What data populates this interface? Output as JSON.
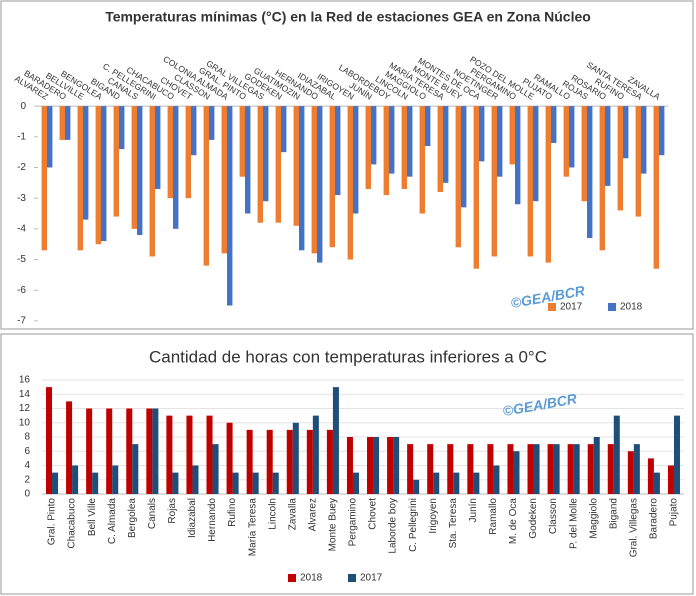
{
  "chart_data": [
    {
      "type": "bar",
      "title": "Temperaturas mínimas (°C) en la Red de estaciones GEA en Zona Núcleo",
      "categories": [
        "ALVAREZ",
        "BARADERO",
        "BELLVILLE",
        "BENGOLEA",
        "BIGAND",
        "CANALS",
        "C. PELLEGRINI",
        "CHACABUCO",
        "CHOVET",
        "CLASSON",
        "COLONIA ALMADA",
        "GRAL. PINTO",
        "GRAL VILLEGAS",
        "GODEKEN",
        "GUATIMOZIN",
        "HERNANDO",
        "IDIAZABAL",
        "IRIGOYEN",
        "JUNÍN",
        "LABORDEBOY",
        "LINCOLN",
        "MAGGIOLO",
        "MARÍA TERESA",
        "MONTE BUEY",
        "MONTES DE OCA",
        "NOETINGER",
        "PERGAMINO",
        "POZO DEL MOLLE",
        "PUJATO",
        "RAMALLO",
        "ROJAS",
        "ROSARIO",
        "RUFINO",
        "SANTA TERESA",
        "ZAVALLA"
      ],
      "series": [
        {
          "name": "2017",
          "color": "#ed7d31",
          "values": [
            -4.7,
            -1.1,
            -4.7,
            -4.5,
            -3.6,
            -4.0,
            -4.9,
            -3.0,
            -3.0,
            -5.2,
            -4.8,
            -2.3,
            -3.8,
            -3.8,
            -3.9,
            -4.8,
            -4.6,
            -5.0,
            -2.7,
            -2.9,
            -2.7,
            -3.5,
            -2.8,
            -4.6,
            -5.3,
            -4.9,
            -1.9,
            -4.9,
            -5.1,
            -2.3,
            -3.1,
            -4.7,
            -3.4,
            -3.6,
            -5.3
          ]
        },
        {
          "name": "2018",
          "color": "#4472c4",
          "values": [
            -2.0,
            -1.1,
            -3.7,
            -4.4,
            -1.4,
            -4.2,
            -2.7,
            -4.0,
            -1.6,
            -1.1,
            -6.5,
            -3.5,
            -3.1,
            -1.5,
            -4.7,
            -5.1,
            -2.9,
            -3.5,
            -1.9,
            -2.2,
            -2.3,
            -1.3,
            -2.5,
            -3.3,
            -1.8,
            -2.3,
            -3.2,
            -3.1,
            -1.2,
            -2.0,
            -4.3,
            -2.6,
            -1.7,
            -2.2,
            -1.6
          ]
        }
      ],
      "ylim": [
        -7.2,
        0.2
      ],
      "yticks": [
        0,
        -1,
        -2,
        -3,
        -4,
        -5,
        -6,
        -7
      ],
      "grid": false,
      "legend": "lower right",
      "annotation": "©GEA/BCR"
    },
    {
      "type": "bar",
      "title": "Cantidad de horas con temperaturas inferiores a 0°C",
      "categories": [
        "Gral. Pinto",
        "Chacabuco",
        "Bell Ville",
        "C. Almada",
        "Bergolea",
        "Canals",
        "Rojas",
        "Idiazabal",
        "Hernando",
        "Rufino",
        "María Teresa",
        "Lincoln",
        "Zavalla",
        "Alvarez",
        "Monte Buey",
        "Pergamino",
        "Chovet",
        "Laborde boy",
        "C. Pellegrini",
        "Irigoyen",
        "Sta. Teresa",
        "Junín",
        "Ramallo",
        "M. de Oca",
        "Godeken",
        "Classon",
        "P. del Molle",
        "Maggiolo",
        "Bigand",
        "Gral. Villegas",
        "Baradero",
        "Pujato"
      ],
      "series": [
        {
          "name": "2018",
          "color": "#c00000",
          "values": [
            15,
            13,
            12,
            12,
            12,
            12,
            11,
            11,
            11,
            10,
            9,
            9,
            9,
            9,
            9,
            8,
            8,
            8,
            7,
            7,
            7,
            7,
            7,
            7,
            7,
            7,
            7,
            7,
            7,
            6,
            5,
            4
          ]
        },
        {
          "name": "2017",
          "color": "#1f4e79",
          "values": [
            3,
            4,
            3,
            4,
            7,
            12,
            3,
            4,
            7,
            3,
            3,
            3,
            10,
            11,
            15,
            3,
            8,
            8,
            2,
            3,
            3,
            3,
            4,
            6,
            7,
            7,
            7,
            8,
            11,
            7,
            3,
            11
          ]
        }
      ],
      "ylim": [
        0,
        16
      ],
      "yticks": [
        0,
        2,
        4,
        6,
        8,
        10,
        12,
        14,
        16
      ],
      "grid": true,
      "legend": "lower center",
      "annotation": "©GEA/BCR"
    }
  ]
}
